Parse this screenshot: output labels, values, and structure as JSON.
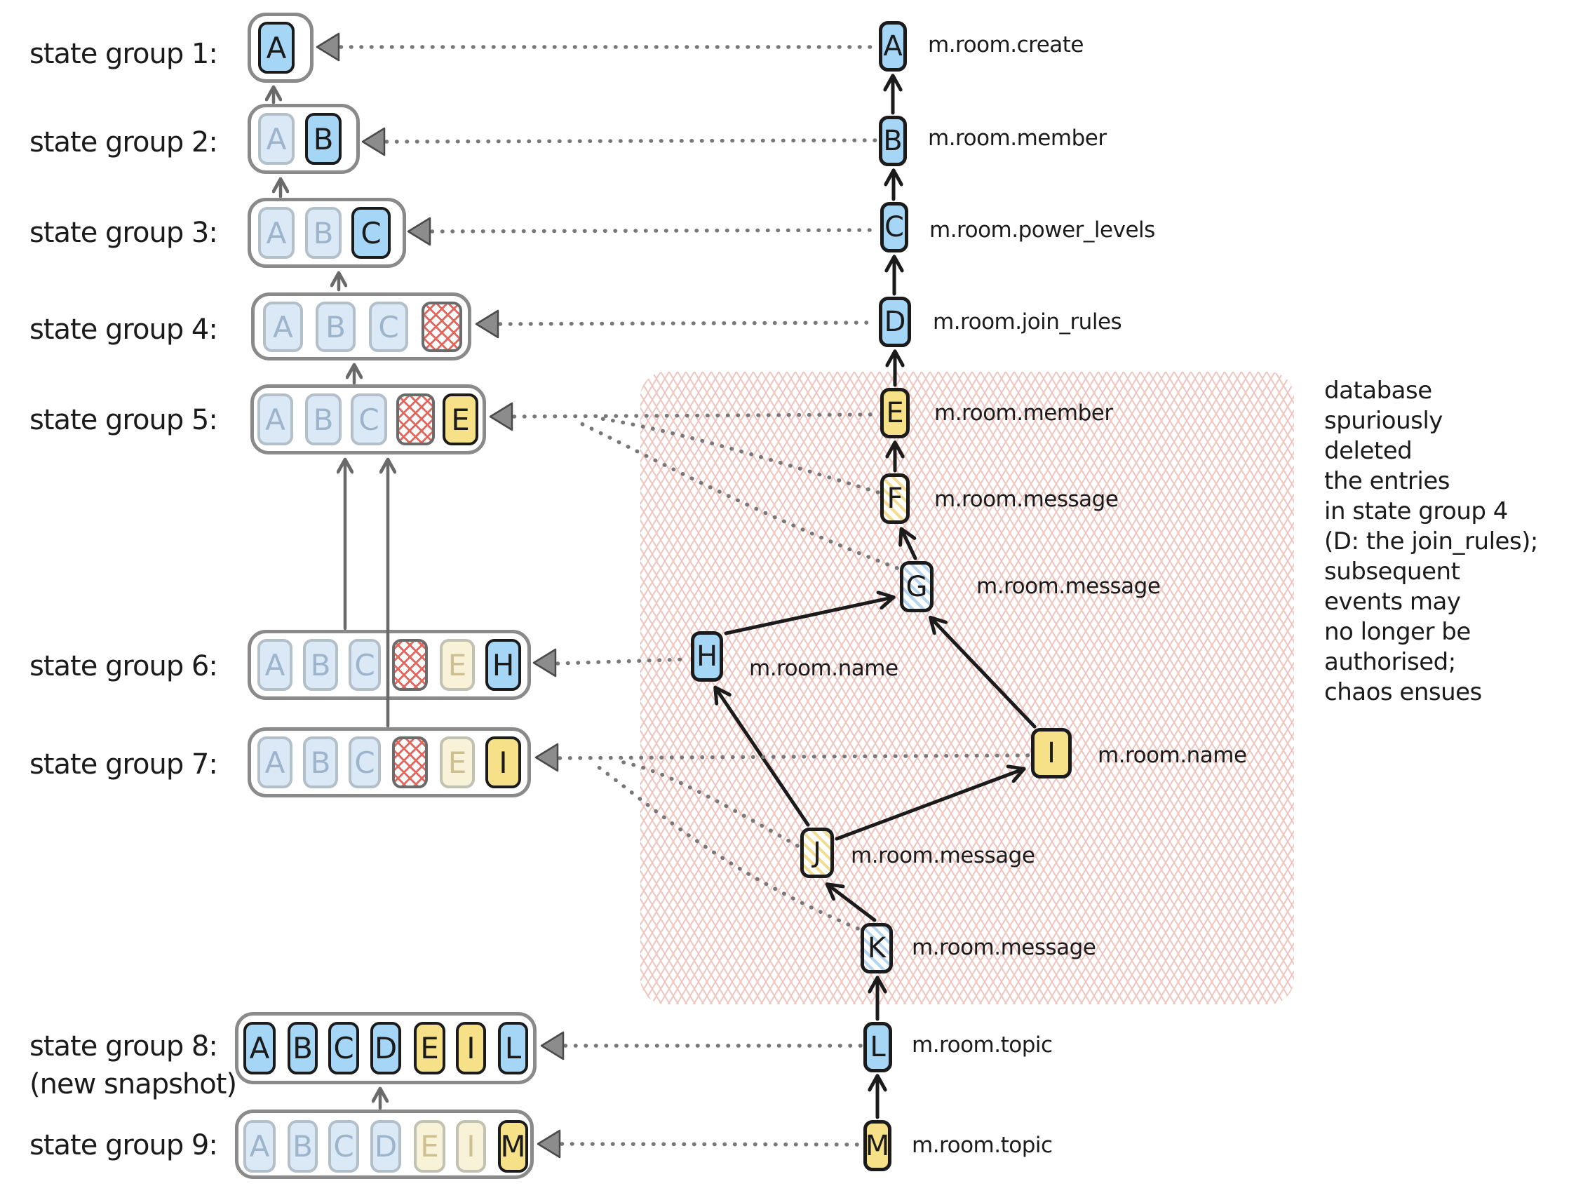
{
  "state_groups": [
    {
      "label": "state group 1:",
      "chips": [
        {
          "letter": "A",
          "style": "blue"
        }
      ],
      "points_to_event": "A"
    },
    {
      "label": "state group 2:",
      "chips": [
        {
          "letter": "A",
          "style": "blue-faded"
        },
        {
          "letter": "B",
          "style": "blue"
        }
      ],
      "points_to_event": "B"
    },
    {
      "label": "state group 3:",
      "chips": [
        {
          "letter": "A",
          "style": "blue-faded"
        },
        {
          "letter": "B",
          "style": "blue-faded"
        },
        {
          "letter": "C",
          "style": "blue"
        }
      ],
      "points_to_event": "C"
    },
    {
      "label": "state group 4:",
      "chips": [
        {
          "letter": "A",
          "style": "blue-faded"
        },
        {
          "letter": "B",
          "style": "blue-faded"
        },
        {
          "letter": "C",
          "style": "blue-faded"
        },
        {
          "letter": "",
          "style": "deleted"
        }
      ],
      "points_to_event": "D"
    },
    {
      "label": "state group 5:",
      "chips": [
        {
          "letter": "A",
          "style": "blue-faded"
        },
        {
          "letter": "B",
          "style": "blue-faded"
        },
        {
          "letter": "C",
          "style": "blue-faded"
        },
        {
          "letter": "",
          "style": "deleted"
        },
        {
          "letter": "E",
          "style": "yellow"
        }
      ],
      "points_to_event": "E"
    },
    {
      "label": "state group 6:",
      "chips": [
        {
          "letter": "A",
          "style": "blue-faded"
        },
        {
          "letter": "B",
          "style": "blue-faded"
        },
        {
          "letter": "C",
          "style": "blue-faded"
        },
        {
          "letter": "",
          "style": "deleted"
        },
        {
          "letter": "E",
          "style": "yellow-faded"
        },
        {
          "letter": "H",
          "style": "blue"
        }
      ],
      "points_to_event": "H"
    },
    {
      "label": "state group 7:",
      "chips": [
        {
          "letter": "A",
          "style": "blue-faded"
        },
        {
          "letter": "B",
          "style": "blue-faded"
        },
        {
          "letter": "C",
          "style": "blue-faded"
        },
        {
          "letter": "",
          "style": "deleted"
        },
        {
          "letter": "E",
          "style": "yellow-faded"
        },
        {
          "letter": "I",
          "style": "yellow"
        }
      ],
      "points_to_event": "I"
    },
    {
      "label": "state group 8:",
      "sublabel": "(new snapshot)",
      "chips": [
        {
          "letter": "A",
          "style": "blue"
        },
        {
          "letter": "B",
          "style": "blue"
        },
        {
          "letter": "C",
          "style": "blue"
        },
        {
          "letter": "D",
          "style": "blue"
        },
        {
          "letter": "E",
          "style": "yellow"
        },
        {
          "letter": "I",
          "style": "yellow"
        },
        {
          "letter": "L",
          "style": "blue"
        }
      ],
      "points_to_event": "L"
    },
    {
      "label": "state group 9:",
      "chips": [
        {
          "letter": "A",
          "style": "blue-faded"
        },
        {
          "letter": "B",
          "style": "blue-faded"
        },
        {
          "letter": "C",
          "style": "blue-faded"
        },
        {
          "letter": "D",
          "style": "blue-faded"
        },
        {
          "letter": "E",
          "style": "yellow-faded"
        },
        {
          "letter": "I",
          "style": "yellow-faded"
        },
        {
          "letter": "M",
          "style": "yellow"
        }
      ],
      "points_to_event": "M"
    }
  ],
  "events": [
    {
      "id": "A",
      "type": "m.room.create",
      "style": "blue"
    },
    {
      "id": "B",
      "type": "m.room.member",
      "style": "blue"
    },
    {
      "id": "C",
      "type": "m.room.power_levels",
      "style": "blue"
    },
    {
      "id": "D",
      "type": "m.room.join_rules",
      "style": "blue"
    },
    {
      "id": "E",
      "type": "m.room.member",
      "style": "yellow"
    },
    {
      "id": "F",
      "type": "m.room.message",
      "style": "stripe-yellow"
    },
    {
      "id": "G",
      "type": "m.room.message",
      "style": "stripe-blue"
    },
    {
      "id": "H",
      "type": "m.room.name",
      "style": "blue"
    },
    {
      "id": "I",
      "type": "m.room.name",
      "style": "yellow"
    },
    {
      "id": "J",
      "type": "m.room.message",
      "style": "stripe-yellow"
    },
    {
      "id": "K",
      "type": "m.room.message",
      "style": "stripe-blue"
    },
    {
      "id": "L",
      "type": "m.room.topic",
      "style": "blue"
    },
    {
      "id": "M",
      "type": "m.room.topic",
      "style": "yellow"
    }
  ],
  "edges": {
    "event_prev": [
      [
        "B",
        "A"
      ],
      [
        "C",
        "B"
      ],
      [
        "D",
        "C"
      ],
      [
        "E",
        "D"
      ],
      [
        "F",
        "E"
      ],
      [
        "G",
        "F"
      ],
      [
        "H",
        "G"
      ],
      [
        "I",
        "G"
      ],
      [
        "J",
        "H"
      ],
      [
        "J",
        "I"
      ],
      [
        "K",
        "J"
      ],
      [
        "L",
        "K"
      ],
      [
        "M",
        "L"
      ]
    ],
    "group_prev": [
      [
        "state group 2",
        "state group 1"
      ],
      [
        "state group 3",
        "state group 2"
      ],
      [
        "state group 4",
        "state group 3"
      ],
      [
        "state group 5",
        "state group 4"
      ],
      [
        "state group 6",
        "state group 5"
      ],
      [
        "state group 7",
        "state group 5"
      ],
      [
        "state group 9",
        "state group 8"
      ]
    ],
    "group_event_links": [
      [
        "state group 1",
        "A"
      ],
      [
        "state group 2",
        "B"
      ],
      [
        "state group 3",
        "C"
      ],
      [
        "state group 4",
        "D"
      ],
      [
        "state group 5",
        "E"
      ],
      [
        "state group 5",
        "F"
      ],
      [
        "state group 5",
        "G"
      ],
      [
        "state group 6",
        "H"
      ],
      [
        "state group 7",
        "I"
      ],
      [
        "state group 7",
        "J"
      ],
      [
        "state group 7",
        "K"
      ],
      [
        "state group 8",
        "L"
      ],
      [
        "state group 9",
        "M"
      ]
    ]
  },
  "annotation": {
    "lines": [
      "database",
      "spuriously",
      "deleted",
      "the entries",
      "in state group 4",
      "(D: the join_rules);",
      "subsequent",
      "events may",
      "no longer be",
      "authorised;",
      "chaos ensues"
    ]
  },
  "colors": {
    "event_blue": "#a5d6f6",
    "event_yellow": "#f7e188",
    "faded_blue": "#dbe9f7",
    "faded_yellow": "#f8f2d8",
    "deleted_red": "#e4655c",
    "region_hatch_pink": "#efc5c0",
    "group_border_gray": "#8a8a8a",
    "connector_gray": "#787878",
    "arrow_black": "#1b1b1b"
  }
}
